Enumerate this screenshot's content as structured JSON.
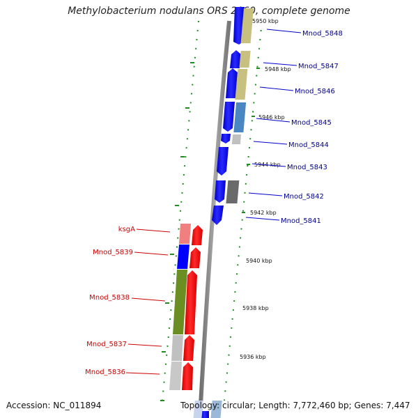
{
  "title": "Methylobacterium nodulans ORS 2060, complete genome",
  "footer": {
    "accession": "Accession: NC_011894",
    "topology": "Topology: circular; Length: 7,772,460 bp; Genes: 7,447"
  },
  "colors": {
    "forward_strand_labels": "#00008b",
    "reverse_strand_labels": "#cc0000",
    "forward_cds": "#0000ff",
    "reverse_cds": "#ff0000",
    "backbone": "#8c8c8c",
    "scale_dots": "#228b22"
  },
  "ticks": [
    {
      "label": "5950 kbp"
    },
    {
      "label": "5948 kbp"
    },
    {
      "label": "5946 kbp"
    },
    {
      "label": "5944 kbp"
    },
    {
      "label": "5942 kbp"
    },
    {
      "label": "5940 kbp"
    },
    {
      "label": "5938 kbp"
    },
    {
      "label": "5936 kbp"
    }
  ],
  "genes_forward": [
    {
      "name": "Mnod_5848",
      "cog_color": "#c8c080"
    },
    {
      "name": "Mnod_5847",
      "cog_color": "#c8c080"
    },
    {
      "name": "Mnod_5846",
      "cog_color": "#c8c080"
    },
    {
      "name": "Mnod_5845",
      "cog_color": "#4a86c2"
    },
    {
      "name": "Mnod_5844",
      "cog_color": "#c0c0c0"
    },
    {
      "name": "Mnod_5843",
      "cog_color": ""
    },
    {
      "name": "Mnod_5842",
      "cog_color": "#6a6a6a"
    },
    {
      "name": "Mnod_5841",
      "cog_color": ""
    }
  ],
  "genes_reverse": [
    {
      "name": "ksgA",
      "cog_color": "#f08080"
    },
    {
      "name": "Mnod_5839",
      "cog_color": "#0000ff"
    },
    {
      "name": "Mnod_5838",
      "cog_color": "#6b8e23"
    },
    {
      "name": "Mnod_5837",
      "cog_color": "#c0c0c0"
    },
    {
      "name": "Mnod_5836",
      "cog_color": "#c0c0c0"
    }
  ]
}
